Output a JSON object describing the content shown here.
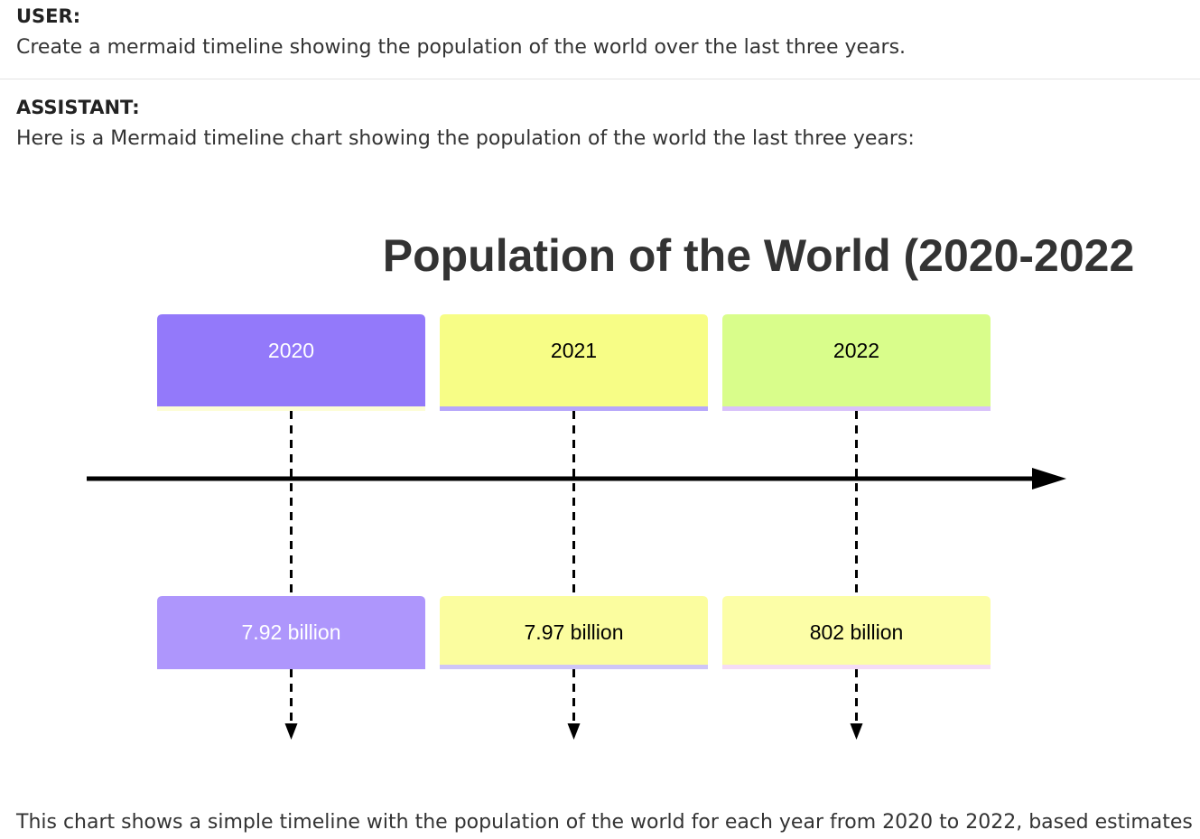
{
  "user": {
    "role_label": "USER:",
    "message": "Create a mermaid timeline showing the population of the world over the last three years."
  },
  "assistant": {
    "role_label": "ASSISTANT:",
    "intro": "Here is a Mermaid timeline chart showing the population of the world the last three years:",
    "footer": "This chart shows a simple timeline with the population of the world for each year from 2020 to 2022, based estimates"
  },
  "timeline": {
    "title": "Population of the World (2020-2022",
    "periods": [
      {
        "label": "2020",
        "event": "7.92 billion",
        "period_color": "#9379fa",
        "period_text_color": "#ffffff",
        "event_color": "#ae96fc",
        "event_text_color": "#ffffff"
      },
      {
        "label": "2021",
        "event": "7.97 billion",
        "period_color": "#f7fd86",
        "period_text_color": "#000000",
        "event_color": "#fbfd9f",
        "event_text_color": "#000000"
      },
      {
        "label": "2022",
        "event": "802 billion",
        "period_color": "#d9fd8b",
        "period_text_color": "#000000",
        "event_color": "#fcfea7",
        "event_text_color": "#000000"
      }
    ]
  }
}
